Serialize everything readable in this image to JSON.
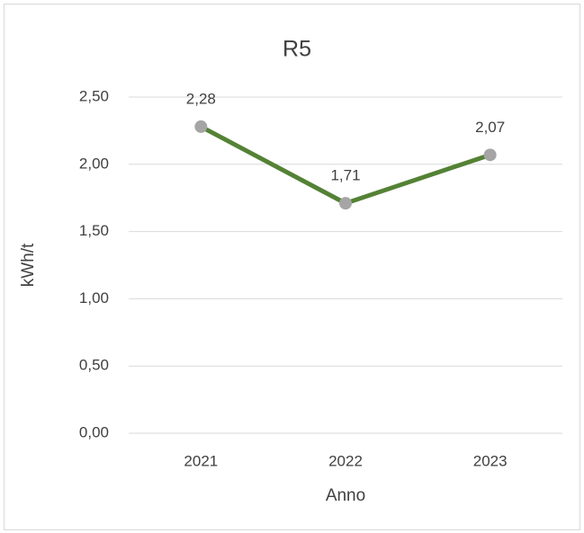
{
  "chart_data": {
    "type": "line",
    "title": "R5",
    "x_label": "Anno",
    "y_label": "kWh/t",
    "categories": [
      "2021",
      "2022",
      "2023"
    ],
    "values": [
      2.28,
      1.71,
      2.07
    ],
    "value_labels": [
      "2,28",
      "1,71",
      "2,07"
    ],
    "color": "#548235",
    "marker_color": "#a5a5a5",
    "ylim": [
      0,
      2.5
    ],
    "yticks": [
      {
        "value": 0,
        "label": "0,00"
      },
      {
        "value": 0.5,
        "label": "0,50"
      },
      {
        "value": 1,
        "label": "1,00"
      },
      {
        "value": 1.5,
        "label": "1,50"
      },
      {
        "value": 2,
        "label": "2,00"
      },
      {
        "value": 2.5,
        "label": "2,50"
      }
    ],
    "grid": true
  }
}
